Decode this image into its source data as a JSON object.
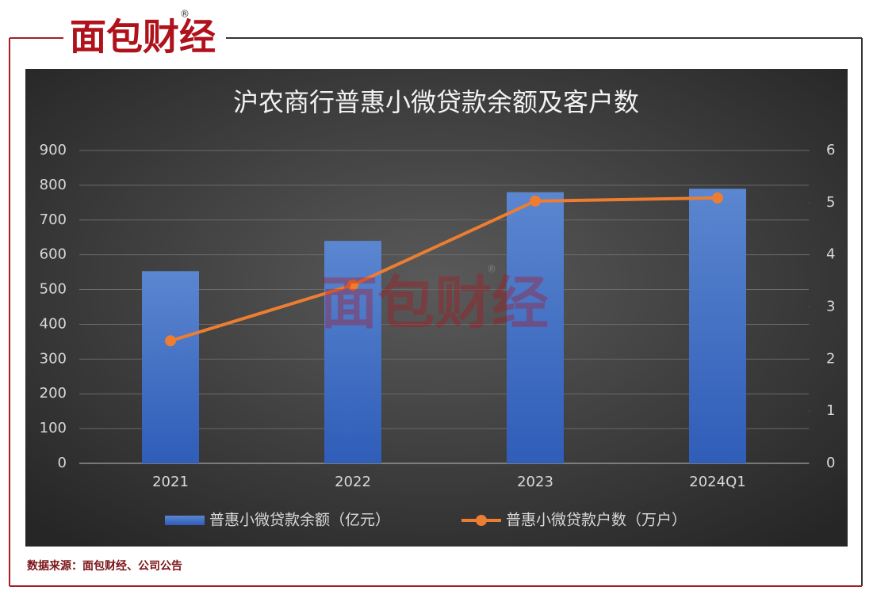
{
  "logo": {
    "text": "面包财经",
    "mark": "®"
  },
  "source": "数据来源：面包财经、公司公告",
  "chart_data": {
    "type": "bar",
    "title": "沪农商行普惠小微贷款余额及客户数",
    "categories": [
      "2021",
      "2022",
      "2023",
      "2024Q1"
    ],
    "series": [
      {
        "name": "普惠小微贷款余额（亿元）",
        "type": "bar",
        "color": "#4472c4",
        "values": [
          553,
          640,
          780,
          790
        ]
      },
      {
        "name": "普惠小微贷款户数（万户）",
        "type": "line",
        "axis": "y2",
        "color": "#ed7d31",
        "values": [
          2.35,
          3.42,
          5.03,
          5.09
        ]
      }
    ],
    "ylim": [
      0,
      900
    ],
    "yticks": [
      0,
      100,
      200,
      300,
      400,
      500,
      600,
      700,
      800,
      900
    ],
    "y2lim": [
      0,
      6
    ],
    "y2ticks": [
      0,
      1,
      2,
      3,
      4,
      5,
      6
    ],
    "grid": true,
    "legend": "bottom"
  }
}
